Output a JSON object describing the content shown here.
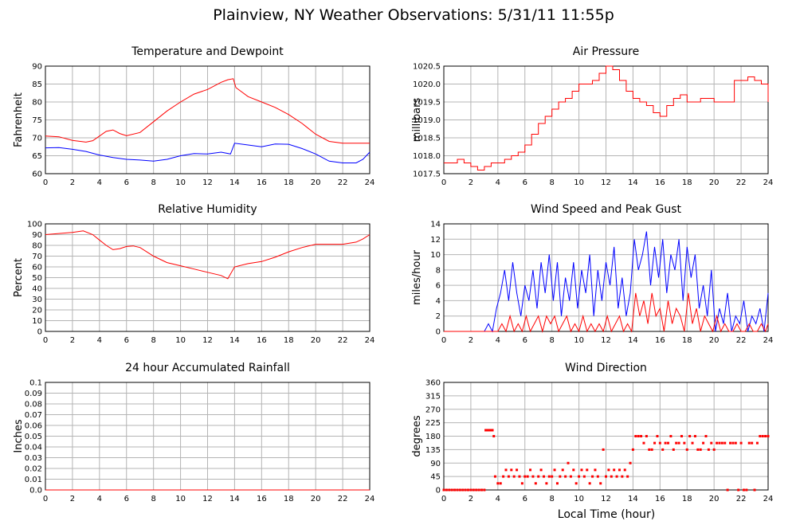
{
  "page_title": "Plainview, NY Weather Observations: 5/31/11 11:55p",
  "x_axis_label": "Local Time (hour)",
  "colors": {
    "red": "#ff0000",
    "blue": "#0000ff",
    "grid": "#b4b4b4",
    "axis": "#000000"
  },
  "chart_data": [
    {
      "id": "temp",
      "type": "line",
      "title": "Temperature and Dewpoint",
      "ylabel": "Fahrenheit",
      "xlim": [
        0,
        24
      ],
      "ylim": [
        60,
        90
      ],
      "xticks": [
        0,
        2,
        4,
        6,
        8,
        10,
        12,
        14,
        16,
        18,
        20,
        22,
        24
      ],
      "yticks": [
        60,
        65,
        70,
        75,
        80,
        85,
        90
      ],
      "ytick_labels": [
        "60",
        "65",
        "70",
        "75",
        "80",
        "85",
        "90"
      ],
      "grid": true,
      "series": [
        {
          "color": "#ff0000",
          "mode": "line",
          "x": [
            0,
            1,
            2,
            3,
            3.5,
            4,
            4.5,
            5,
            5.5,
            6,
            7,
            8,
            9,
            10,
            11,
            12,
            13,
            13.5,
            13.9,
            14.1,
            15,
            16,
            17,
            18,
            19,
            20,
            21,
            22,
            23,
            24
          ],
          "y": [
            70.5,
            70.3,
            69.3,
            68.8,
            69.2,
            70.5,
            71.8,
            72.2,
            71.2,
            70.6,
            71.5,
            74.5,
            77.5,
            80,
            82.2,
            83.5,
            85.5,
            86.2,
            86.5,
            84,
            81.5,
            80,
            78.5,
            76.5,
            74,
            71,
            69,
            68.5,
            68.5,
            68.5
          ]
        },
        {
          "color": "#0000ff",
          "mode": "line",
          "x": [
            0,
            1,
            2,
            3,
            4,
            5,
            6,
            7,
            8,
            9,
            10,
            11,
            12,
            13,
            13.7,
            14,
            15,
            16,
            17,
            18,
            19,
            20,
            21,
            22,
            23,
            23.5,
            24
          ],
          "y": [
            67.2,
            67.3,
            66.8,
            66.2,
            65.2,
            64.5,
            64,
            63.8,
            63.5,
            64,
            65,
            65.6,
            65.5,
            66,
            65.5,
            68.5,
            68,
            67.5,
            68.3,
            68.2,
            67,
            65.5,
            63.5,
            63,
            63,
            64,
            66
          ]
        }
      ]
    },
    {
      "id": "press",
      "type": "line",
      "title": "Air Pressure",
      "ylabel": "millibars",
      "xlim": [
        0,
        24
      ],
      "ylim": [
        1017.5,
        1020.5
      ],
      "xticks": [
        0,
        2,
        4,
        6,
        8,
        10,
        12,
        14,
        16,
        18,
        20,
        22,
        24
      ],
      "yticks": [
        1017.5,
        1018.0,
        1018.5,
        1019.0,
        1019.5,
        1020.0,
        1020.5
      ],
      "ytick_labels": [
        "1017.5",
        "1018.0",
        "1018.5",
        "1019.0",
        "1019.5",
        "1020.0",
        "1020.5"
      ],
      "grid": true,
      "series": [
        {
          "color": "#ff0000",
          "mode": "step",
          "x": [
            0,
            0.8,
            1.0,
            1.5,
            2.0,
            2.5,
            3.0,
            3.5,
            4.0,
            4.5,
            5.0,
            5.5,
            6.0,
            6.5,
            7.0,
            7.5,
            8.0,
            8.5,
            9.0,
            9.5,
            10.0,
            10.5,
            11.0,
            11.5,
            12.0,
            12.5,
            13.0,
            13.5,
            14.0,
            14.5,
            15.0,
            15.5,
            16.0,
            16.5,
            17.0,
            17.5,
            18.0,
            19.0,
            20.0,
            21.0,
            21.5,
            22.0,
            22.5,
            23.0,
            23.5,
            24
          ],
          "y": [
            1017.8,
            1017.8,
            1017.9,
            1017.8,
            1017.7,
            1017.6,
            1017.7,
            1017.8,
            1017.8,
            1017.9,
            1018.0,
            1018.1,
            1018.3,
            1018.6,
            1018.9,
            1019.1,
            1019.3,
            1019.5,
            1019.6,
            1019.8,
            1020.0,
            1020.0,
            1020.1,
            1020.3,
            1020.5,
            1020.4,
            1020.1,
            1019.8,
            1019.6,
            1019.5,
            1019.4,
            1019.2,
            1019.1,
            1019.4,
            1019.6,
            1019.7,
            1019.5,
            1019.6,
            1019.5,
            1019.5,
            1020.1,
            1020.1,
            1020.2,
            1020.1,
            1020.0,
            1019.5
          ]
        }
      ]
    },
    {
      "id": "rh",
      "type": "line",
      "title": "Relative Humidity",
      "ylabel": "Percent",
      "xlim": [
        0,
        24
      ],
      "ylim": [
        0,
        100
      ],
      "xticks": [
        0,
        2,
        4,
        6,
        8,
        10,
        12,
        14,
        16,
        18,
        20,
        22,
        24
      ],
      "yticks": [
        0,
        10,
        20,
        30,
        40,
        50,
        60,
        70,
        80,
        90,
        100
      ],
      "ytick_labels": [
        "0",
        "10",
        "20",
        "30",
        "40",
        "50",
        "60",
        "70",
        "80",
        "90",
        "100"
      ],
      "grid": true,
      "series": [
        {
          "color": "#ff0000",
          "mode": "line",
          "x": [
            0,
            1,
            2,
            2.8,
            3.5,
            4,
            4.5,
            5,
            5.5,
            6,
            6.5,
            7,
            8,
            9,
            10,
            11,
            12,
            13,
            13.5,
            14,
            15,
            16,
            17,
            18,
            19,
            20,
            21,
            22,
            23,
            23.5,
            24
          ],
          "y": [
            90,
            91,
            92,
            93.5,
            90,
            85,
            80,
            76,
            77,
            79,
            79.5,
            78,
            70,
            64,
            61,
            58,
            55,
            52,
            49,
            60,
            63,
            65,
            69,
            74,
            78,
            81,
            81,
            81,
            83,
            86,
            90
          ]
        }
      ]
    },
    {
      "id": "wind",
      "type": "line",
      "title": "Wind Speed and Peak Gust",
      "ylabel": "miles/hour",
      "xlim": [
        0,
        24
      ],
      "ylim": [
        0,
        14
      ],
      "xticks": [
        0,
        2,
        4,
        6,
        8,
        10,
        12,
        14,
        16,
        18,
        20,
        22,
        24
      ],
      "yticks": [
        0,
        2,
        4,
        6,
        8,
        10,
        12,
        14
      ],
      "ytick_labels": [
        "0",
        "2",
        "4",
        "6",
        "8",
        "10",
        "12",
        "14"
      ],
      "grid": true,
      "series": [
        {
          "color": "#0000ff",
          "mode": "line",
          "x": [
            0,
            3.0,
            3.3,
            3.6,
            3.9,
            4.2,
            4.5,
            4.8,
            5.1,
            5.4,
            5.7,
            6.0,
            6.3,
            6.6,
            6.9,
            7.2,
            7.5,
            7.8,
            8.1,
            8.4,
            8.7,
            9.0,
            9.3,
            9.6,
            9.9,
            10.2,
            10.5,
            10.8,
            11.1,
            11.4,
            11.7,
            12.0,
            12.3,
            12.6,
            12.9,
            13.2,
            13.5,
            13.8,
            14.1,
            14.4,
            14.7,
            15.0,
            15.3,
            15.6,
            15.9,
            16.2,
            16.5,
            16.8,
            17.1,
            17.4,
            17.7,
            18.0,
            18.3,
            18.6,
            18.9,
            19.2,
            19.5,
            19.8,
            20.1,
            20.4,
            20.7,
            21.0,
            21.3,
            21.6,
            21.9,
            22.2,
            22.5,
            22.8,
            23.1,
            23.4,
            23.7,
            24
          ],
          "y": [
            0,
            0,
            1,
            0,
            3,
            5,
            8,
            4,
            9,
            5,
            2,
            6,
            4,
            8,
            3,
            9,
            5,
            10,
            4,
            9,
            2,
            7,
            4,
            9,
            3,
            8,
            5,
            10,
            2,
            8,
            4,
            9,
            6,
            11,
            3,
            7,
            2,
            5,
            12,
            8,
            10,
            13,
            6,
            11,
            7,
            12,
            5,
            10,
            8,
            12,
            4,
            11,
            7,
            10,
            3,
            6,
            2,
            8,
            0,
            3,
            1,
            5,
            0,
            2,
            1,
            4,
            0,
            2,
            1,
            3,
            0,
            5
          ]
        },
        {
          "color": "#ff0000",
          "mode": "line",
          "x": [
            0,
            4.0,
            4.3,
            4.6,
            4.9,
            5.2,
            5.5,
            5.8,
            6.1,
            6.4,
            6.7,
            7.0,
            7.3,
            7.6,
            7.9,
            8.2,
            8.5,
            8.8,
            9.1,
            9.4,
            9.7,
            10.0,
            10.3,
            10.6,
            10.9,
            11.2,
            11.5,
            11.8,
            12.1,
            12.4,
            12.7,
            13.0,
            13.3,
            13.6,
            13.9,
            14.2,
            14.5,
            14.8,
            15.1,
            15.4,
            15.7,
            16.0,
            16.3,
            16.6,
            16.9,
            17.2,
            17.5,
            17.8,
            18.1,
            18.4,
            18.7,
            19.0,
            19.3,
            19.6,
            19.9,
            20.2,
            20.5,
            20.8,
            21.1,
            21.4,
            21.7,
            22.0,
            22.3,
            22.6,
            22.9,
            23.2,
            23.5,
            23.8,
            24
          ],
          "y": [
            0,
            0,
            1,
            0,
            2,
            0,
            1,
            0,
            2,
            0,
            1,
            2,
            0,
            2,
            1,
            2,
            0,
            1,
            2,
            0,
            1,
            0,
            2,
            0,
            1,
            0,
            1,
            0,
            2,
            0,
            1,
            2,
            0,
            1,
            0,
            5,
            2,
            4,
            1,
            5,
            2,
            3,
            0,
            4,
            1,
            3,
            2,
            0,
            5,
            1,
            3,
            0,
            2,
            1,
            0,
            2,
            0,
            1,
            0,
            0,
            1,
            0,
            0,
            1,
            0,
            0,
            1,
            0,
            1
          ]
        }
      ]
    },
    {
      "id": "rain",
      "type": "line",
      "title": "24 hour Accumulated Rainfall",
      "ylabel": "Inches",
      "xlim": [
        0,
        24
      ],
      "ylim": [
        0,
        0.1
      ],
      "xticks": [
        0,
        2,
        4,
        6,
        8,
        10,
        12,
        14,
        16,
        18,
        20,
        22,
        24
      ],
      "yticks": [
        0,
        0.01,
        0.02,
        0.03,
        0.04,
        0.05,
        0.06,
        0.07,
        0.08,
        0.09,
        0.1
      ],
      "ytick_labels": [
        "0.0",
        "0.01",
        "0.02",
        "0.03",
        "0.04",
        "0.05",
        "0.06",
        "0.07",
        "0.08",
        "0.09",
        "0.1"
      ],
      "grid": true,
      "series": [
        {
          "color": "#ff0000",
          "mode": "line",
          "x": [
            0,
            24
          ],
          "y": [
            0,
            0
          ]
        }
      ]
    },
    {
      "id": "wdir",
      "type": "scatter",
      "title": "Wind Direction",
      "ylabel": "degrees",
      "xlabel": "Local Time (hour)",
      "xlim": [
        0,
        24
      ],
      "ylim": [
        0,
        360
      ],
      "xticks": [
        0,
        2,
        4,
        6,
        8,
        10,
        12,
        14,
        16,
        18,
        20,
        22,
        24
      ],
      "yticks": [
        0,
        45,
        90,
        135,
        180,
        225,
        270,
        315,
        360
      ],
      "ytick_labels": [
        "0",
        "45",
        "90",
        "135",
        "180",
        "225",
        "270",
        "315",
        "360"
      ],
      "grid": true,
      "series": [
        {
          "color": "#ff0000",
          "mode": "points",
          "x": [
            0,
            0.2,
            0.4,
            0.6,
            0.8,
            1.0,
            1.2,
            1.4,
            1.6,
            1.8,
            2.0,
            2.2,
            2.4,
            2.6,
            2.8,
            3.0,
            3.1,
            3.2,
            3.3,
            3.4,
            3.5,
            3.6,
            3.7,
            3.8,
            4.0,
            4.2,
            4.4,
            4.6,
            4.8,
            5.0,
            5.2,
            5.4,
            5.6,
            5.8,
            6.0,
            6.2,
            6.4,
            6.6,
            6.8,
            7.0,
            7.2,
            7.4,
            7.6,
            7.8,
            8.0,
            8.2,
            8.4,
            8.6,
            8.8,
            9.0,
            9.2,
            9.4,
            9.6,
            9.8,
            10.0,
            10.2,
            10.4,
            10.6,
            10.8,
            11.0,
            11.2,
            11.4,
            11.6,
            11.8,
            12.0,
            12.2,
            12.4,
            12.6,
            12.8,
            13.0,
            13.2,
            13.4,
            13.6,
            13.8,
            14.0,
            14.2,
            14.4,
            14.6,
            14.8,
            15.0,
            15.2,
            15.4,
            15.6,
            15.8,
            16.0,
            16.2,
            16.4,
            16.6,
            16.8,
            17.0,
            17.2,
            17.4,
            17.6,
            17.8,
            18.0,
            18.2,
            18.4,
            18.6,
            18.8,
            19.0,
            19.2,
            19.4,
            19.6,
            19.8,
            20.0,
            20.2,
            20.4,
            20.6,
            20.8,
            21.0,
            21.2,
            21.4,
            21.6,
            21.8,
            22.0,
            22.2,
            22.4,
            22.6,
            22.8,
            23.0,
            23.2,
            23.4,
            23.6,
            23.8,
            24.0
          ],
          "y": [
            0,
            0,
            0,
            0,
            0,
            0,
            0,
            0,
            0,
            0,
            0,
            0,
            0,
            0,
            0,
            0,
            200,
            200,
            200,
            200,
            200,
            200,
            180,
            45,
            22,
            22,
            45,
            67,
            45,
            67,
            45,
            67,
            45,
            22,
            45,
            45,
            67,
            45,
            22,
            45,
            67,
            45,
            22,
            45,
            45,
            67,
            22,
            45,
            67,
            45,
            90,
            45,
            67,
            22,
            45,
            67,
            45,
            67,
            22,
            45,
            67,
            45,
            22,
            135,
            45,
            67,
            45,
            67,
            45,
            67,
            45,
            67,
            45,
            90,
            135,
            180,
            180,
            180,
            157,
            180,
            135,
            135,
            157,
            180,
            157,
            135,
            157,
            157,
            180,
            135,
            157,
            157,
            180,
            157,
            135,
            180,
            157,
            180,
            135,
            135,
            157,
            180,
            135,
            157,
            135,
            157,
            157,
            157,
            157,
            0,
            157,
            157,
            157,
            0,
            157,
            0,
            0,
            157,
            157,
            0,
            157,
            180,
            180,
            180,
            180
          ]
        }
      ]
    }
  ]
}
